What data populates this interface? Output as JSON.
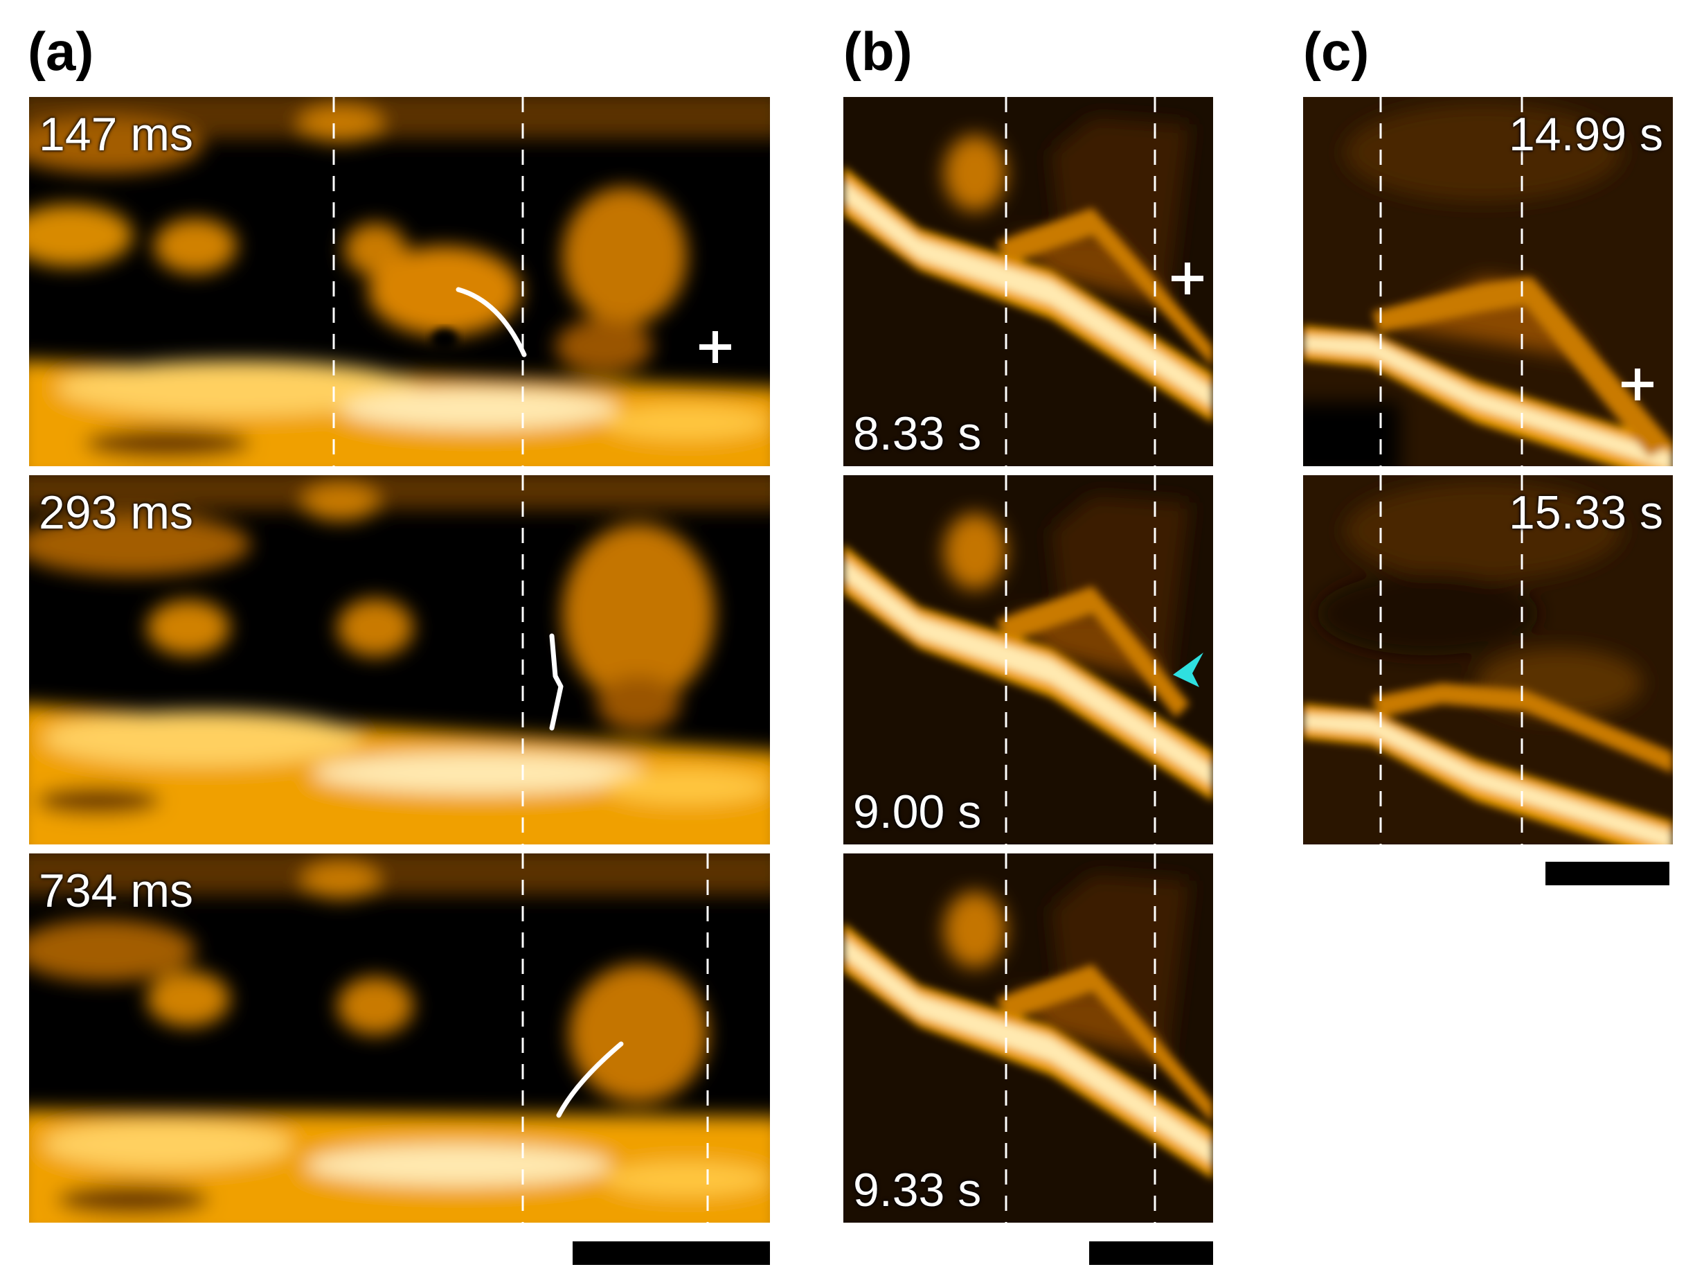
{
  "figure": {
    "panels": [
      {
        "id": "a",
        "label": "(a)",
        "frames": [
          {
            "timestamp": "147 ms",
            "marker": "+",
            "trace": "arc"
          },
          {
            "timestamp": "293 ms",
            "trace": "chevron"
          },
          {
            "timestamp": "734 ms",
            "trace": "arc"
          }
        ],
        "scale_bar": true
      },
      {
        "id": "b",
        "label": "(b)",
        "frames": [
          {
            "timestamp": "8.33 s",
            "marker": "+"
          },
          {
            "timestamp": "9.00 s",
            "arrowhead": true
          },
          {
            "timestamp": "9.33 s"
          }
        ],
        "scale_bar": true
      },
      {
        "id": "c",
        "label": "(c)",
        "frames": [
          {
            "timestamp": "14.99 s",
            "marker": "+"
          },
          {
            "timestamp": "15.33 s"
          }
        ],
        "scale_bar": true
      }
    ],
    "colors": {
      "background": "#000000",
      "colormap": [
        "#000000",
        "#3a1e00",
        "#8a4a00",
        "#d98300",
        "#ffb000",
        "#ffe9b0"
      ],
      "guide_lines": "#ffffff",
      "arrowhead": "#2fe0e0",
      "scale_bar": "#000000"
    }
  }
}
